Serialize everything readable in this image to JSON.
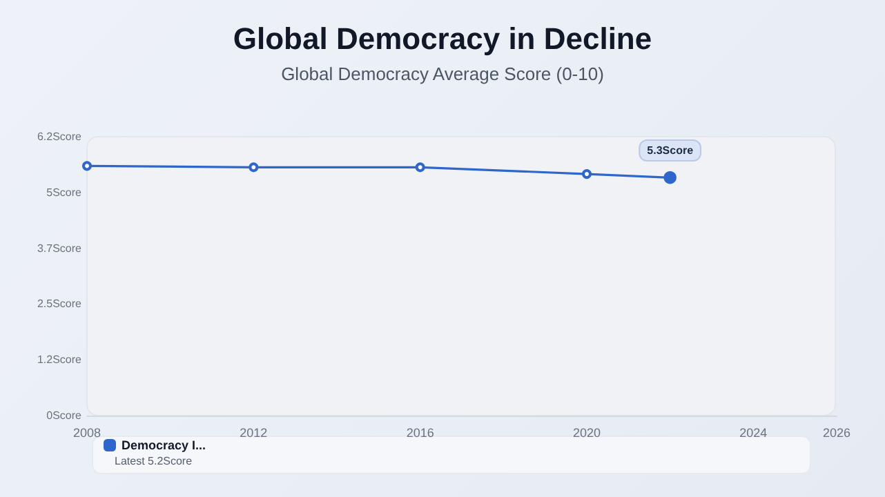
{
  "chart_data": {
    "type": "line",
    "title": "Global Democracy in Decline",
    "subtitle": "Global Democracy Average Score (0-10)",
    "x": [
      2008,
      2012,
      2016,
      2020,
      2022
    ],
    "series": [
      {
        "name": "Democracy I...",
        "color": "#2f66cc",
        "values": [
          5.55,
          5.52,
          5.52,
          5.37,
          5.29
        ],
        "value_labels": [
          null,
          null,
          null,
          null,
          "5.3Score"
        ]
      }
    ],
    "annotations": [
      "Latest 5.2Score"
    ],
    "xlim": [
      2008,
      2026
    ],
    "xticks": [
      2008,
      2012,
      2016,
      2020,
      2024,
      2026
    ],
    "ylim": [
      0,
      6.2
    ],
    "yticks": [
      {
        "value": 0,
        "label": "0Score"
      },
      {
        "value": 1.24,
        "label": "1.2Score"
      },
      {
        "value": 2.48,
        "label": "2.5Score"
      },
      {
        "value": 3.72,
        "label": "3.7Score"
      },
      {
        "value": 4.96,
        "label": "5Score"
      },
      {
        "value": 6.2,
        "label": "6.2Score"
      }
    ],
    "grid": false,
    "legend": "bottom",
    "marker": "circle",
    "line_style": "solid"
  }
}
